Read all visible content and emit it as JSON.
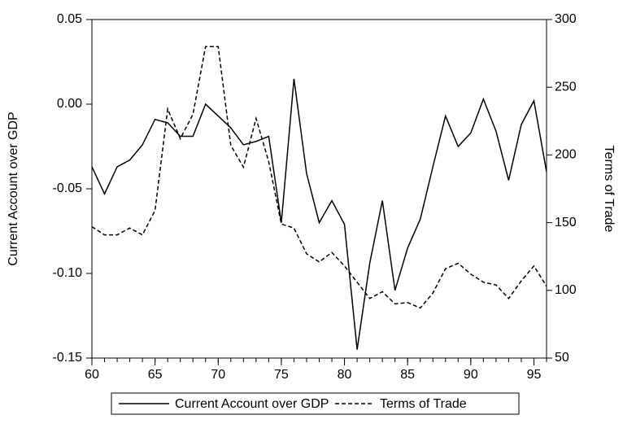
{
  "chart_data": {
    "type": "line",
    "x": [
      60,
      61,
      62,
      63,
      64,
      65,
      66,
      67,
      68,
      69,
      70,
      71,
      72,
      73,
      74,
      75,
      76,
      77,
      78,
      79,
      80,
      81,
      82,
      83,
      84,
      85,
      86,
      87,
      88,
      89,
      90,
      91,
      92,
      93,
      94,
      95,
      96
    ],
    "series": [
      {
        "name": "Current Account over GDP",
        "color": "#000000",
        "dash": "solid",
        "values": [
          -0.037,
          -0.053,
          -0.037,
          -0.033,
          -0.024,
          -0.009,
          -0.011,
          -0.019,
          -0.019,
          0.0,
          -0.007,
          -0.014,
          -0.024,
          -0.022,
          -0.019,
          -0.07,
          0.015,
          -0.041,
          -0.07,
          -0.057,
          -0.071,
          -0.145,
          -0.094,
          -0.057,
          -0.11,
          -0.085,
          -0.068,
          -0.037,
          -0.007,
          -0.025,
          -0.017,
          0.003,
          -0.016,
          -0.045,
          -0.012,
          0.002,
          -0.04
        ]
      },
      {
        "name": "Terms of Trade",
        "color": "#000000",
        "dash": "dashed",
        "axis": "y2",
        "values": [
          147,
          141,
          141,
          146,
          141,
          159,
          234,
          212,
          230,
          280,
          280,
          207,
          191,
          227,
          195,
          149,
          146,
          127,
          121,
          128,
          118,
          106,
          94,
          99,
          90,
          91,
          87,
          98,
          116,
          120,
          112,
          106,
          104,
          94,
          107,
          118,
          103
        ]
      }
    ],
    "ylabel": "Current Account over GDP",
    "y2label": "Terms of Trade",
    "xlim": [
      60,
      96
    ],
    "xticks": [
      60,
      65,
      70,
      75,
      80,
      85,
      90,
      95
    ],
    "ylim": [
      -0.15,
      0.05
    ],
    "yticks": [
      -0.15,
      {
        "value": -0.1,
        "label": "-0.10"
      },
      -0.05,
      {
        "value": 0,
        "label": "0.00"
      },
      0.05
    ],
    "y2lim": [
      50,
      300
    ],
    "y2ticks": [
      50,
      100,
      150,
      200,
      250,
      300
    ],
    "legend": "bottom"
  }
}
